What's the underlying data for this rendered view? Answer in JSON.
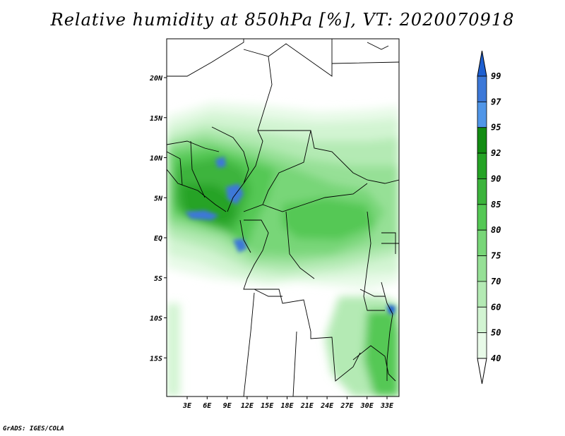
{
  "title": "Relative humidity at 850hPa [%], VT: 2020070918",
  "credit": "GrADS: IGES/COLA",
  "lat_labels": [
    "20N",
    "15N",
    "10N",
    "5N",
    "EQ",
    "5S",
    "10S",
    "15S"
  ],
  "lon_labels": [
    "3E",
    "6E",
    "9E",
    "12E",
    "15E",
    "18E",
    "21E",
    "24E",
    "27E",
    "30E",
    "33E"
  ],
  "colorbar": {
    "labels": [
      "99",
      "97",
      "95",
      "92",
      "90",
      "85",
      "80",
      "75",
      "70",
      "60",
      "50",
      "40"
    ],
    "colors": [
      "#1e5fd0",
      "#3c78d8",
      "#5096e8",
      "#128c12",
      "#25a325",
      "#3cb43c",
      "#55c855",
      "#78d678",
      "#96e096",
      "#b4eab4",
      "#d2f4d2",
      "#e8fae8",
      "#ffffff"
    ]
  }
}
